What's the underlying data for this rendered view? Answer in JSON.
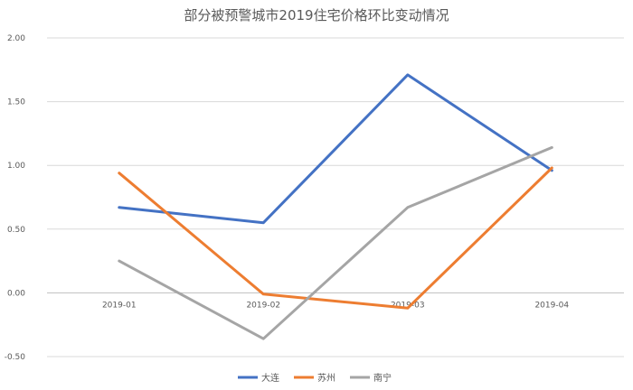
{
  "chart_data": {
    "type": "line",
    "title": "部分被预警城市2019住宅价格环比变动情况",
    "categories": [
      "2019-01",
      "2019-02",
      "2019-03",
      "2019-04"
    ],
    "ylim": [
      -0.5,
      2.0
    ],
    "yticks": [
      "2.00",
      "1.50",
      "1.00",
      "0.50",
      "0.00",
      "-0.50"
    ],
    "ytick_values": [
      2.0,
      1.5,
      1.0,
      0.5,
      0.0,
      -0.5
    ],
    "grid": true,
    "legend_position": "bottom",
    "series": [
      {
        "name": "大连",
        "color": "#4472c4",
        "values": [
          0.67,
          0.55,
          1.71,
          0.96
        ]
      },
      {
        "name": "苏州",
        "color": "#ed7d31",
        "values": [
          0.94,
          -0.01,
          -0.12,
          0.98
        ]
      },
      {
        "name": "南宁",
        "color": "#a5a5a5",
        "values": [
          0.25,
          -0.36,
          0.67,
          1.14
        ]
      }
    ]
  }
}
